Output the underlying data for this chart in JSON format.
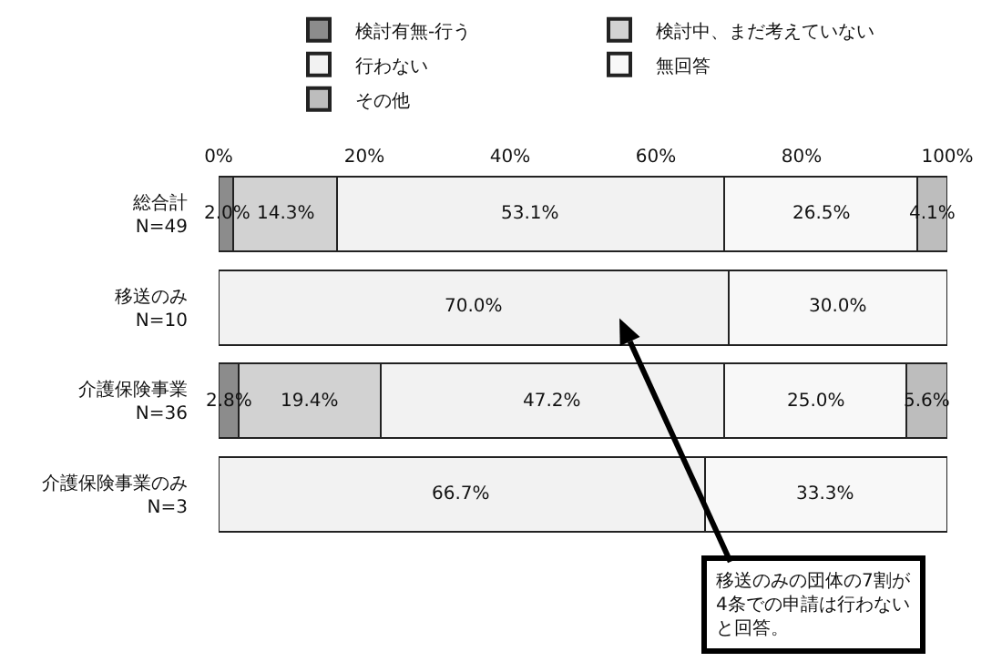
{
  "chart_data": {
    "type": "bar",
    "orientation": "horizontal",
    "stacked": true,
    "categories": [
      "総合計\nN=49",
      "移送のみ\nN=10",
      "介護保険事業\nN=36",
      "介護保険事業のみ\nN=3"
    ],
    "series": [
      {
        "name": "検討有無-行う",
        "color": "#8c8c8c",
        "values": [
          2.0,
          null,
          2.8,
          null
        ],
        "value_labels": [
          "2.0%",
          null,
          "2.8%",
          null
        ]
      },
      {
        "name": "検討中、まだ考えていない",
        "color": "#d2d2d2",
        "values": [
          14.3,
          null,
          19.4,
          null
        ],
        "value_labels": [
          "14.3%",
          null,
          "19.4%",
          null
        ]
      },
      {
        "name": "行わない",
        "color": "#f2f2f2",
        "values": [
          53.1,
          70.0,
          47.2,
          66.7
        ],
        "value_labels": [
          "53.1%",
          "70.0%",
          "47.2%",
          "66.7%"
        ]
      },
      {
        "name": "無回答",
        "color": "#f8f8f8",
        "values": [
          26.5,
          30.0,
          25.0,
          33.3
        ],
        "value_labels": [
          "26.5%",
          "30.0%",
          "25.0%",
          "33.3%"
        ]
      },
      {
        "name": "その他",
        "color": "#bdbdbd",
        "values": [
          4.1,
          null,
          5.6,
          null
        ],
        "value_labels": [
          "4.1%",
          null,
          "5.6%",
          null
        ]
      }
    ],
    "xlim": [
      0,
      100
    ],
    "xticks": [
      {
        "value": 0,
        "label": "0%"
      },
      {
        "value": 20,
        "label": "20%"
      },
      {
        "value": 40,
        "label": "40%"
      },
      {
        "value": 60,
        "label": "60%"
      },
      {
        "value": 80,
        "label": "80%"
      },
      {
        "value": 100,
        "label": "100%"
      }
    ],
    "grid": false,
    "legend": "top",
    "annotations": [
      {
        "text": "移送のみの団体の7割が4条での申請は行わないと回答。",
        "x": 55,
        "y": "移送のみ\nN=10"
      }
    ]
  }
}
